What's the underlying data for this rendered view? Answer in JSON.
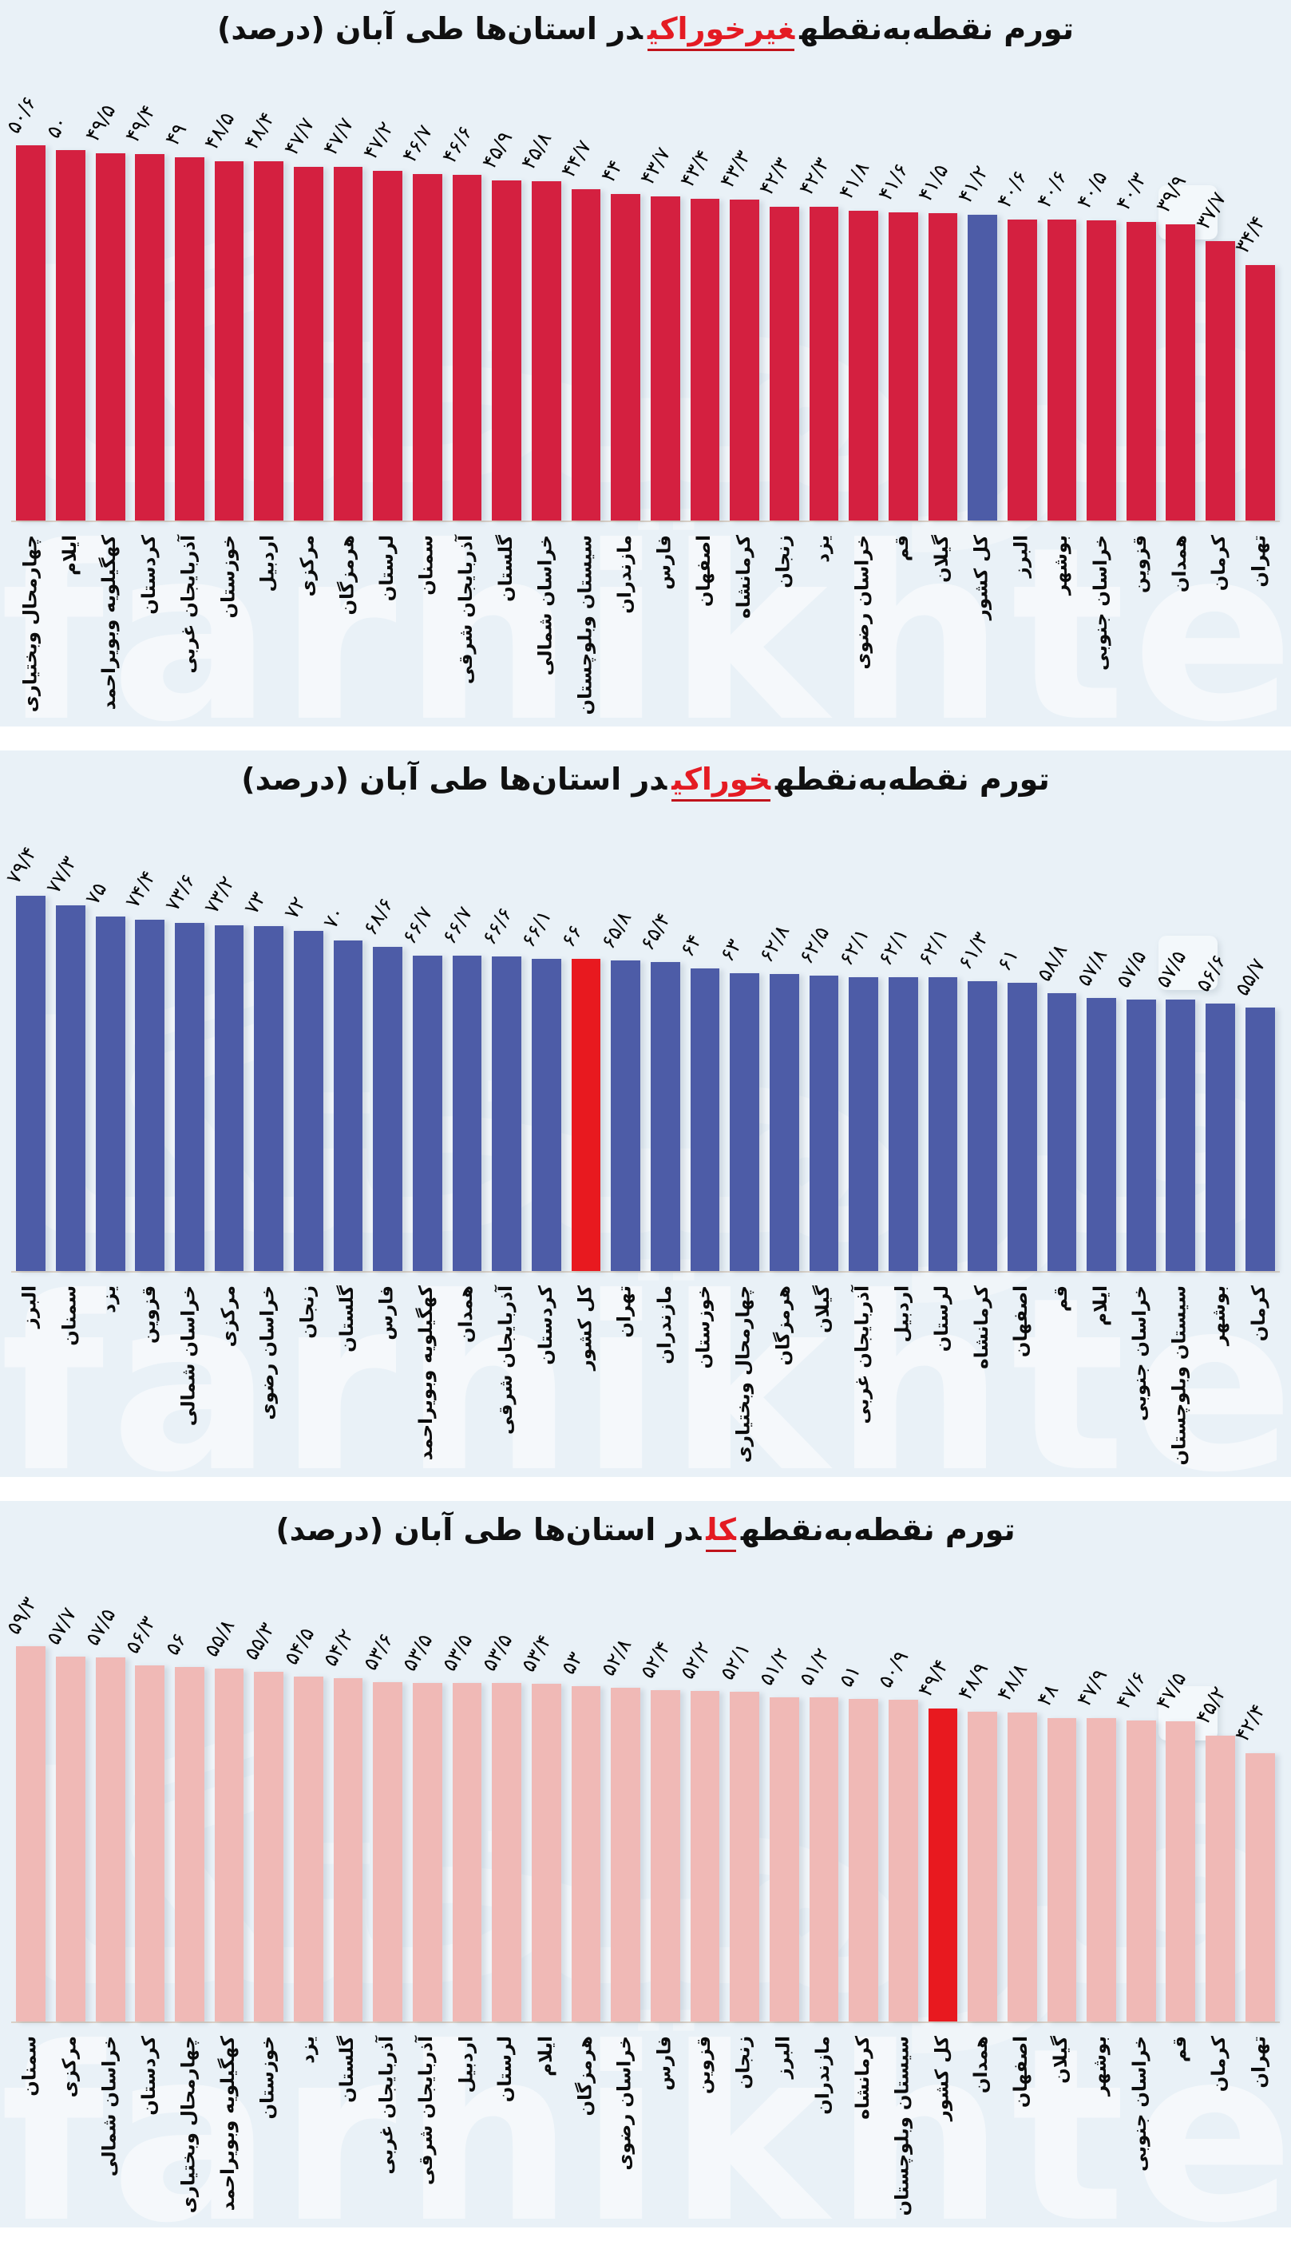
{
  "colors": {
    "background": "#e9f1f7",
    "nonfood_bar": "#d42040",
    "food_bar": "#4d5ca7",
    "total_bar": "#f0b9b6",
    "highlight_red": "#e8191f",
    "keyword_red": "#e41b23"
  },
  "watermark": {
    "en": "farhikhtegan",
    "fa": "فرهیختگان"
  },
  "chart_data": [
    {
      "type": "bar",
      "title": "تورم  نقطه‌به‌نقطه غیرخوراکی در استان‌ها طی آبان (درصد)",
      "title_prefix": "تورم  نقطه‌به‌نقطه",
      "title_keyword": "غیرخوراکی",
      "title_suffix": "در استان‌ها طی آبان (درصد)",
      "ylim": [
        0,
        50.6
      ],
      "grid": false,
      "legend": "none",
      "bar_color": "#d42040",
      "highlight_color": "#4d5ca7",
      "highlight_index": 24,
      "highlight_label": "کل کشور",
      "categories": [
        "چهارمحال وبختیاری",
        "ایلام",
        "کهگیلویه وبویراحمد",
        "کردستان",
        "آذربایجان غربی",
        "خوزستان",
        "اردبیل",
        "مرکزی",
        "هرمزگان",
        "لرستان",
        "سمنان",
        "آذربایجان شرقی",
        "گلستان",
        "خراسان شمالی",
        "سیستان وبلوچستان",
        "مازندران",
        "فارس",
        "اصفهان",
        "کرمانشاه",
        "زنجان",
        "یزد",
        "خراسان رضوی",
        "قم",
        "گیلان",
        "کل کشور",
        "البرز",
        "بوشهر",
        "خراسان جنوبی",
        "قزوین",
        "همدان",
        "کرمان",
        "تهران"
      ],
      "values": [
        50.6,
        50,
        49.5,
        49.4,
        49,
        48.5,
        48.4,
        47.7,
        47.7,
        47.2,
        46.7,
        46.6,
        45.9,
        45.8,
        44.7,
        44,
        43.7,
        43.4,
        43.3,
        42.3,
        42.3,
        41.8,
        41.6,
        41.5,
        41.2,
        40.6,
        40.6,
        40.5,
        40.3,
        39.9,
        37.7,
        34.4
      ],
      "values_display": [
        "۵۰/۶",
        "۵۰",
        "۴۹/۵",
        "۴۹/۴",
        "۴۹",
        "۴۸/۵",
        "۴۸/۴",
        "۴۷/۷",
        "۴۷/۷",
        "۴۷/۲",
        "۴۶/۷",
        "۴۶/۶",
        "۴۵/۹",
        "۴۵/۸",
        "۴۴/۷",
        "۴۴",
        "۴۳/۷",
        "۴۳/۴",
        "۴۳/۳",
        "۴۲/۳",
        "۴۲/۳",
        "۴۱/۸",
        "۴۱/۶",
        "۴۱/۵",
        "۴۱/۲",
        "۴۰/۶",
        "۴۰/۶",
        "۴۰/۵",
        "۴۰/۳",
        "۳۹/۹",
        "۳۷/۷",
        "۳۴/۴"
      ]
    },
    {
      "type": "bar",
      "title": "تورم  نقطه‌به‌نقطه خوراکی در استان‌ها طی آبان (درصد)",
      "title_prefix": "تورم  نقطه‌به‌نقطه",
      "title_keyword": "خوراکی",
      "title_suffix": "در استان‌ها طی آبان (درصد)",
      "ylim": [
        0,
        79.4
      ],
      "grid": false,
      "legend": "none",
      "bar_color": "#4d5ca7",
      "highlight_color": "#e8191f",
      "highlight_index": 14,
      "highlight_label": "کل کشور",
      "categories": [
        "البرز",
        "سمنان",
        "یزد",
        "قزوین",
        "خراسان شمالی",
        "مرکزی",
        "خراسان رضوی",
        "زنجان",
        "گلستان",
        "فارس",
        "کهگیلویه وبویراحمد",
        "همدان",
        "آذربایجان شرقی",
        "کردستان",
        "کل کشور",
        "تهران",
        "مازندران",
        "خوزستان",
        "چهارمحال وبختیاری",
        "هرمزگان",
        "گیلان",
        "آذربایجان غربی",
        "اردبیل",
        "لرستان",
        "کرمانشاه",
        "اصفهان",
        "قم",
        "ایلام",
        "خراسان جنوبی",
        "سیستان وبلوچستان",
        "بوشهر",
        "کرمان"
      ],
      "values": [
        79.4,
        77.3,
        75,
        74.4,
        73.6,
        73.2,
        73,
        72,
        70,
        68.6,
        66.7,
        66.7,
        66.6,
        66.1,
        66,
        65.8,
        65.4,
        64,
        63,
        62.8,
        62.5,
        62.1,
        62.1,
        62.1,
        61.3,
        61,
        58.8,
        57.8,
        57.5,
        57.5,
        56.6,
        55.7
      ],
      "values_display": [
        "۷۹/۴",
        "۷۷/۳",
        "۷۵",
        "۷۴/۴",
        "۷۳/۶",
        "۷۳/۲",
        "۷۳",
        "۷۲",
        "۷۰",
        "۶۸/۶",
        "۶۶/۷",
        "۶۶/۷",
        "۶۶/۶",
        "۶۶/۱",
        "۶۶",
        "۶۵/۸",
        "۶۵/۴",
        "۶۴",
        "۶۳",
        "۶۲/۸",
        "۶۲/۵",
        "۶۲/۱",
        "۶۲/۱",
        "۶۲/۱",
        "۶۱/۳",
        "۶۱",
        "۵۸/۸",
        "۵۷/۸",
        "۵۷/۵",
        "۵۷/۵",
        "۵۶/۶",
        "۵۵/۷"
      ]
    },
    {
      "type": "bar",
      "title": "تورم  نقطه‌به‌نقطه کل در استان‌ها طی آبان (درصد)",
      "title_prefix": "تورم  نقطه‌به‌نقطه",
      "title_keyword": "کل",
      "title_suffix": "در استان‌ها طی آبان (درصد)",
      "ylim": [
        0,
        59.3
      ],
      "grid": false,
      "legend": "none",
      "bar_color": "#f0b9b6",
      "highlight_color": "#e8191f",
      "highlight_index": 23,
      "highlight_label": "کل کشور",
      "categories": [
        "سمنان",
        "مرکزی",
        "خراسان شمالی",
        "کردستان",
        "چهارمحال وبختیاری",
        "کهگیلویه وبویراحمد",
        "خوزستان",
        "یزد",
        "گلستان",
        "آذربایجان غربی",
        "آذربایجان شرقی",
        "اردبیل",
        "لرستان",
        "ایلام",
        "هرمزگان",
        "خراسان رضوی",
        "فارس",
        "قزوین",
        "زنجان",
        "البرز",
        "مازندران",
        "کرمانشاه",
        "سیستان وبلوچستان",
        "کل کشور",
        "همدان",
        "اصفهان",
        "گیلان",
        "بوشهر",
        "خراسان جنوبی",
        "قم",
        "کرمان",
        "تهران"
      ],
      "values": [
        59.3,
        57.7,
        57.5,
        56.3,
        56,
        55.8,
        55.3,
        54.5,
        54.2,
        53.6,
        53.5,
        53.5,
        53.5,
        53.4,
        53,
        52.8,
        52.4,
        52.2,
        52.1,
        51.2,
        51.2,
        51,
        50.9,
        49.4,
        48.9,
        48.8,
        48,
        47.9,
        47.6,
        47.5,
        45.2,
        42.4
      ],
      "values_display": [
        "۵۹/۳",
        "۵۷/۷",
        "۵۷/۵",
        "۵۶/۳",
        "۵۶",
        "۵۵/۸",
        "۵۵/۳",
        "۵۴/۵",
        "۵۴/۲",
        "۵۳/۶",
        "۵۳/۵",
        "۵۳/۵",
        "۵۳/۵",
        "۵۳/۴",
        "۵۳",
        "۵۲/۸",
        "۵۲/۴",
        "۵۲/۲",
        "۵۲/۱",
        "۵۱/۲",
        "۵۱/۲",
        "۵۱",
        "۵۰/۹",
        "۴۹/۴",
        "۴۸/۹",
        "۴۸/۸",
        "۴۸",
        "۴۷/۹",
        "۴۷/۶",
        "۴۷/۵",
        "۴۵/۲",
        "۴۲/۴"
      ]
    }
  ]
}
